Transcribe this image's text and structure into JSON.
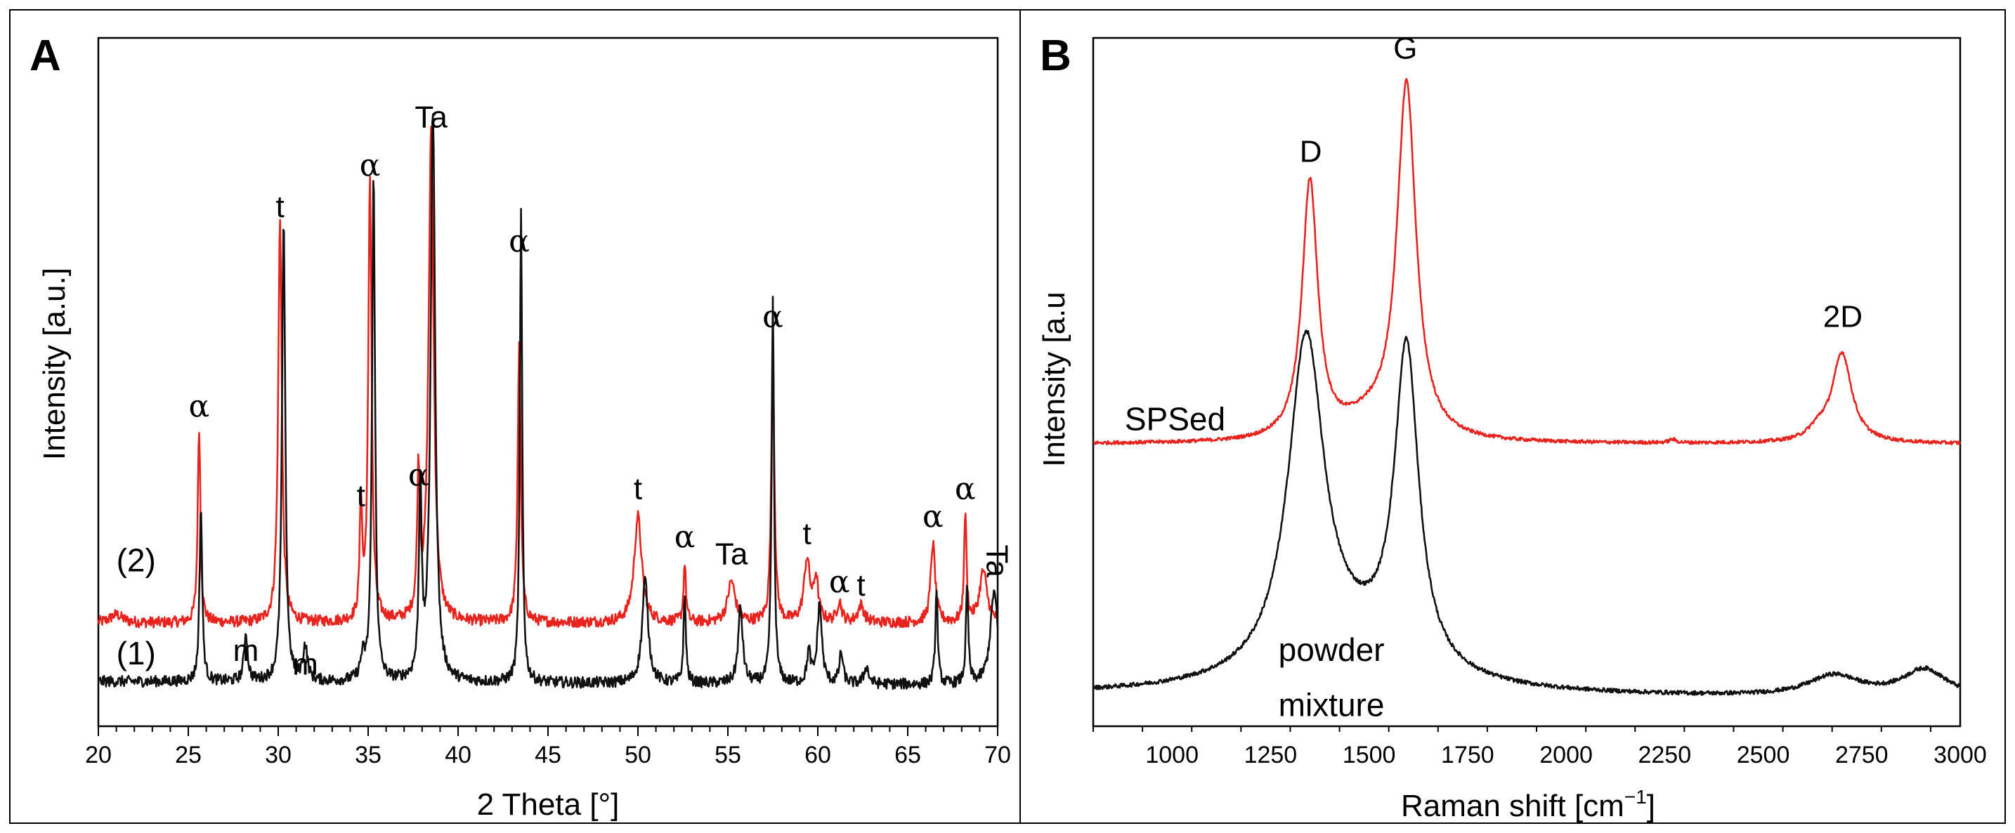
{
  "chart_data": [
    {
      "panel": "A",
      "type": "line",
      "xlabel": "2 Theta [°]",
      "ylabel": "Intensity [a.u.]",
      "xlim": [
        20,
        70
      ],
      "xticks": [
        20,
        25,
        30,
        35,
        40,
        45,
        50,
        55,
        60,
        65,
        70
      ],
      "ylim": [
        0,
        100
      ],
      "series": [
        {
          "name": "(2)",
          "color": "#e8231e",
          "baseline": 15,
          "baseline_slope": 0,
          "noise": 0.8,
          "peaks": [
            [
              21.0,
              1.2,
              0.4
            ],
            [
              25.6,
              28.5,
              0.09
            ],
            [
              30.1,
              58.5,
              0.12
            ],
            [
              34.6,
              17.0,
              0.08
            ],
            [
              35.1,
              64.5,
              0.11
            ],
            [
              37.8,
              20.5,
              0.09
            ],
            [
              38.5,
              71.0,
              0.17
            ],
            [
              43.4,
              41.0,
              0.1
            ],
            [
              50.0,
              15.5,
              0.25
            ],
            [
              52.6,
              8.5,
              0.08
            ],
            [
              55.2,
              6.0,
              0.25
            ],
            [
              57.5,
              40.0,
              0.1
            ],
            [
              59.4,
              9.0,
              0.2
            ],
            [
              59.9,
              6.0,
              0.15
            ],
            [
              61.2,
              3.0,
              0.15
            ],
            [
              62.4,
              2.5,
              0.2
            ],
            [
              66.4,
              11.5,
              0.15
            ],
            [
              68.2,
              16.0,
              0.08
            ],
            [
              69.2,
              7.5,
              0.25
            ]
          ]
        },
        {
          "name": "(1)",
          "color": "#111111",
          "baseline": 6.5,
          "baseline_slope": -0.05,
          "noise": 0.8,
          "peaks": [
            [
              25.7,
              25.5,
              0.09
            ],
            [
              28.2,
              7.0,
              0.12
            ],
            [
              30.3,
              67.0,
              0.11
            ],
            [
              31.5,
              5.0,
              0.15
            ],
            [
              34.7,
              3.0,
              0.15
            ],
            [
              35.3,
              73.5,
              0.1
            ],
            [
              37.9,
              28.0,
              0.09
            ],
            [
              38.6,
              83.0,
              0.15
            ],
            [
              43.5,
              68.0,
              0.08
            ],
            [
              50.4,
              15.0,
              0.2
            ],
            [
              52.6,
              12.5,
              0.08
            ],
            [
              55.7,
              11.0,
              0.15
            ],
            [
              57.5,
              55.5,
              0.08
            ],
            [
              59.5,
              4.5,
              0.12
            ],
            [
              60.1,
              11.5,
              0.15
            ],
            [
              61.3,
              4.5,
              0.12
            ],
            [
              62.7,
              2.5,
              0.15
            ],
            [
              66.6,
              13.5,
              0.08
            ],
            [
              68.3,
              14.0,
              0.08
            ],
            [
              69.8,
              13.5,
              0.25
            ]
          ]
        }
      ],
      "annotations": [
        {
          "text": "α",
          "x": 25.6,
          "y": 45
        },
        {
          "text": "t",
          "x": 30.1,
          "y": 74
        },
        {
          "text": "α",
          "x": 35.1,
          "y": 80
        },
        {
          "text": "t",
          "x": 34.6,
          "y": 32
        },
        {
          "text": "α",
          "x": 37.8,
          "y": 35
        },
        {
          "text": "Ta",
          "x": 38.5,
          "y": 87
        },
        {
          "text": "α",
          "x": 43.4,
          "y": 69
        },
        {
          "text": "t",
          "x": 50.0,
          "y": 33
        },
        {
          "text": "α",
          "x": 52.6,
          "y": 26
        },
        {
          "text": "Ta",
          "x": 55.2,
          "y": 23.5
        },
        {
          "text": "α",
          "x": 57.5,
          "y": 58
        },
        {
          "text": "t",
          "x": 59.4,
          "y": 26.5
        },
        {
          "text": "α",
          "x": 61.2,
          "y": 19.5
        },
        {
          "text": "t",
          "x": 62.4,
          "y": 19
        },
        {
          "text": "α",
          "x": 66.4,
          "y": 29
        },
        {
          "text": "α",
          "x": 68.2,
          "y": 33
        },
        {
          "text": "Ta",
          "x": 69.4,
          "y": 24,
          "rotate": true
        },
        {
          "text": "m",
          "x": 28.2,
          "y": 9.5
        },
        {
          "text": "m",
          "x": 31.5,
          "y": 7.5
        }
      ],
      "series_labels": [
        {
          "text": "(2)",
          "x": 21.0,
          "y": 22.5
        },
        {
          "text": "(1)",
          "x": 21.0,
          "y": 9.0
        }
      ]
    },
    {
      "panel": "B",
      "type": "line",
      "xlabel": "Raman shift [cm",
      "xlabel_sup": "−1",
      "xlabel_end": "]",
      "ylabel": "Intensity [a.u",
      "xlim": [
        800,
        3000
      ],
      "xticks": [
        1000,
        1250,
        1500,
        1750,
        2000,
        2250,
        2500,
        2750,
        3000
      ],
      "ylim": [
        0,
        100
      ],
      "series": [
        {
          "name": "SPSed",
          "color": "#e8231e",
          "baseline": 41,
          "baseline_slope": 0,
          "noise": 0.25,
          "peaks": [
            [
              1350,
              37.5,
              24
            ],
            [
              1595,
              51.5,
              29
            ],
            [
              1500,
              2.5,
              80
            ],
            [
              2700,
              13.0,
              30
            ],
            [
              2640,
              1.5,
              30
            ],
            [
              2270,
              0.5,
              10
            ]
          ]
        },
        {
          "name": "powder mixture",
          "color": "#111111",
          "baseline": 4.5,
          "baseline_slope": -0.06,
          "noise": 0.3,
          "peaks": [
            [
              1340,
              47.5,
              55
            ],
            [
              1595,
              46.0,
              37
            ],
            [
              1450,
              6.0,
              200
            ],
            [
              2680,
              3.0,
              80
            ],
            [
              2910,
              4.0,
              70
            ]
          ]
        }
      ],
      "annotations": [
        {
          "text": "D",
          "x": 1352,
          "y": 82
        },
        {
          "text": "G",
          "x": 1592,
          "y": 97
        },
        {
          "text": "2D",
          "x": 2702,
          "y": 58
        }
      ],
      "series_labels": [
        {
          "text": "SPSed",
          "x": 880,
          "y": 43
        },
        {
          "text": "powder",
          "x": 1270,
          "y": 9.5
        },
        {
          "text": "mixture",
          "x": 1270,
          "y": 1.5
        }
      ]
    }
  ],
  "panels": {
    "a_label": "A",
    "b_label": "B"
  }
}
